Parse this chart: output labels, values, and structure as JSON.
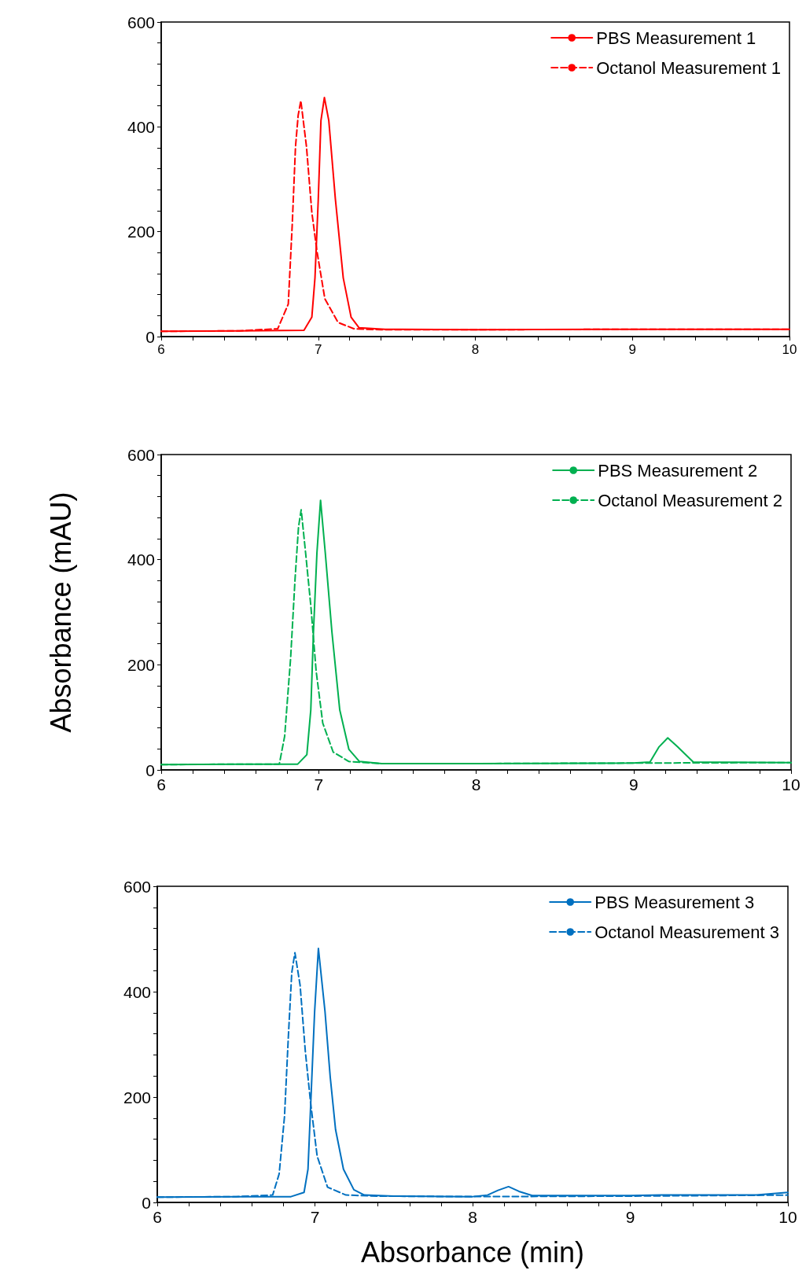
{
  "chart_data": [
    {
      "type": "line",
      "legend": "top right",
      "marker": "none",
      "grid": false,
      "xlim": [
        6,
        10
      ],
      "ylim": [
        0,
        600
      ],
      "xticks": [
        6,
        {
          "value": 6.2,
          "label": null
        },
        {
          "value": 6.4,
          "label": null
        },
        {
          "value": 6.6,
          "label": null
        },
        {
          "value": 6.8,
          "label": null
        },
        7,
        {
          "value": 7.2,
          "label": null
        },
        {
          "value": 7.4,
          "label": null
        },
        {
          "value": 7.6,
          "label": null
        },
        {
          "value": 7.8,
          "label": null
        },
        8,
        {
          "value": 8.2,
          "label": null
        },
        {
          "value": 8.4,
          "label": null
        },
        {
          "value": 8.6,
          "label": null
        },
        {
          "value": 8.8,
          "label": null
        },
        9,
        {
          "value": 9.2,
          "label": null
        },
        {
          "value": 9.4,
          "label": null
        },
        {
          "value": 9.6,
          "label": null
        },
        {
          "value": 9.8,
          "label": null
        },
        10
      ],
      "yticks": [
        0,
        {
          "value": 40,
          "label": null
        },
        {
          "value": 80,
          "label": null
        },
        {
          "value": 120,
          "label": null
        },
        {
          "value": 160,
          "label": null
        },
        200,
        {
          "value": 240,
          "label": null
        },
        {
          "value": 280,
          "label": null
        },
        {
          "value": 320,
          "label": null
        },
        {
          "value": 360,
          "label": null
        },
        400,
        {
          "value": 440,
          "label": null
        },
        {
          "value": 480,
          "label": null
        },
        {
          "value": 520,
          "label": null
        },
        {
          "value": 560,
          "label": null
        },
        600
      ],
      "series": [
        {
          "name": "PBS Measurement 1",
          "color": "#ff0000",
          "line_style": "solid",
          "x": [
            6,
            6.5,
            6.909,
            6.959,
            6.979,
            7.0,
            7.017,
            7.039,
            7.067,
            7.109,
            7.159,
            7.209,
            7.259,
            7.426,
            8,
            9,
            10
          ],
          "values": [
            10,
            11,
            12,
            37,
            112,
            262,
            412,
            456,
            412,
            262,
            112,
            37,
            17,
            14,
            13,
            14,
            14
          ]
        },
        {
          "name": "Octanol Measurement 1",
          "color": "#ff0000",
          "line_style": "dashed",
          "x": [
            6,
            6.5,
            6.742,
            6.809,
            6.834,
            6.855,
            6.872,
            6.889,
            6.925,
            6.959,
            6.992,
            7.042,
            7.126,
            7.226,
            7.4,
            8,
            9,
            10
          ],
          "values": [
            10,
            11,
            15,
            62,
            212,
            362,
            422,
            450,
            362,
            237,
            162,
            72,
            27,
            15,
            13,
            13,
            14,
            14
          ]
        }
      ]
    },
    {
      "type": "line",
      "legend": "top right",
      "marker": "none",
      "grid": false,
      "xlim": [
        6,
        10
      ],
      "ylim": [
        0,
        600
      ],
      "ylabel": "Absorbance (mAU)",
      "xticks": [
        6,
        {
          "value": 6.2,
          "label": null
        },
        {
          "value": 6.4,
          "label": null
        },
        {
          "value": 6.6,
          "label": null
        },
        {
          "value": 6.8,
          "label": null
        },
        7,
        {
          "value": 7.2,
          "label": null
        },
        {
          "value": 7.4,
          "label": null
        },
        {
          "value": 7.6,
          "label": null
        },
        {
          "value": 7.8,
          "label": null
        },
        8,
        {
          "value": 8.2,
          "label": null
        },
        {
          "value": 8.4,
          "label": null
        },
        {
          "value": 8.6,
          "label": null
        },
        {
          "value": 8.8,
          "label": null
        },
        9,
        {
          "value": 9.2,
          "label": null
        },
        {
          "value": 9.4,
          "label": null
        },
        {
          "value": 9.6,
          "label": null
        },
        {
          "value": 9.8,
          "label": null
        },
        10
      ],
      "yticks": [
        0,
        {
          "value": 40,
          "label": null
        },
        {
          "value": 80,
          "label": null
        },
        {
          "value": 120,
          "label": null
        },
        {
          "value": 160,
          "label": null
        },
        200,
        {
          "value": 240,
          "label": null
        },
        {
          "value": 280,
          "label": null
        },
        {
          "value": 320,
          "label": null
        },
        {
          "value": 360,
          "label": null
        },
        400,
        {
          "value": 440,
          "label": null
        },
        {
          "value": 480,
          "label": null
        },
        {
          "value": 520,
          "label": null
        },
        {
          "value": 560,
          "label": null
        },
        600
      ],
      "series": [
        {
          "name": "PBS Measurement 2",
          "color": "#00b050",
          "line_style": "solid",
          "x": [
            6,
            6.5,
            6.867,
            6.925,
            6.95,
            6.967,
            6.989,
            7.012,
            7.042,
            7.084,
            7.134,
            7.192,
            7.259,
            7.4,
            8,
            9,
            9.104,
            9.162,
            9.217,
            9.279,
            9.379,
            10
          ],
          "values": [
            10,
            11,
            11,
            29,
            114,
            263,
            413,
            513,
            413,
            263,
            114,
            39,
            16,
            12,
            12,
            13,
            15,
            44,
            61,
            44,
            15,
            14
          ]
        },
        {
          "name": "Octanol Measurement 2",
          "color": "#00b050",
          "line_style": "dashed",
          "x": [
            6,
            6.5,
            6.75,
            6.784,
            6.822,
            6.85,
            6.872,
            6.889,
            6.917,
            6.95,
            6.984,
            7.026,
            7.092,
            7.192,
            7.4,
            8,
            9,
            10
          ],
          "values": [
            10,
            11,
            11,
            64,
            213,
            363,
            462,
            495,
            413,
            313,
            188,
            89,
            34,
            16,
            12,
            12,
            13,
            14
          ]
        }
      ]
    },
    {
      "type": "line",
      "legend": "top right",
      "marker": "none",
      "grid": false,
      "xlim": [
        6,
        10
      ],
      "ylim": [
        0,
        600
      ],
      "xlabel": "Absorbance (min)",
      "xticks": [
        6,
        {
          "value": 6.2,
          "label": null
        },
        {
          "value": 6.4,
          "label": null
        },
        {
          "value": 6.6,
          "label": null
        },
        {
          "value": 6.8,
          "label": null
        },
        7,
        {
          "value": 7.2,
          "label": null
        },
        {
          "value": 7.4,
          "label": null
        },
        {
          "value": 7.6,
          "label": null
        },
        {
          "value": 7.8,
          "label": null
        },
        8,
        {
          "value": 8.2,
          "label": null
        },
        {
          "value": 8.4,
          "label": null
        },
        {
          "value": 8.6,
          "label": null
        },
        {
          "value": 8.8,
          "label": null
        },
        9,
        {
          "value": 9.2,
          "label": null
        },
        {
          "value": 9.4,
          "label": null
        },
        {
          "value": 9.6,
          "label": null
        },
        {
          "value": 9.8,
          "label": null
        },
        10
      ],
      "yticks": [
        0,
        {
          "value": 40,
          "label": null
        },
        {
          "value": 80,
          "label": null
        },
        {
          "value": 120,
          "label": null
        },
        {
          "value": 160,
          "label": null
        },
        200,
        {
          "value": 240,
          "label": null
        },
        {
          "value": 280,
          "label": null
        },
        {
          "value": 320,
          "label": null
        },
        {
          "value": 360,
          "label": null
        },
        400,
        {
          "value": 440,
          "label": null
        },
        {
          "value": 480,
          "label": null
        },
        {
          "value": 520,
          "label": null
        },
        {
          "value": 560,
          "label": null
        },
        600
      ],
      "series": [
        {
          "name": "PBS Measurement 3",
          "color": "#0070c0",
          "line_style": "solid",
          "x": [
            6,
            6.5,
            6.848,
            6.931,
            6.956,
            6.977,
            6.998,
            7.022,
            7.064,
            7.097,
            7.131,
            7.181,
            7.247,
            7.313,
            7.5,
            8,
            8.095,
            8.161,
            8.228,
            8.294,
            8.378,
            9,
            9.2,
            9.8,
            10
          ],
          "values": [
            10,
            11,
            11,
            19,
            63,
            213,
            362,
            482,
            362,
            238,
            138,
            63,
            24,
            14,
            12,
            11,
            14,
            23,
            30,
            21,
            13,
            13,
            14,
            14,
            19
          ]
        },
        {
          "name": "Octanol Measurement 3",
          "color": "#0070c0",
          "line_style": "dashed",
          "x": [
            6,
            6.5,
            6.732,
            6.773,
            6.807,
            6.831,
            6.853,
            6.873,
            6.906,
            6.939,
            6.973,
            7.014,
            7.08,
            7.197,
            7.4,
            8,
            9,
            10
          ],
          "values": [
            10,
            11,
            14,
            54,
            163,
            312,
            436,
            474,
            412,
            287,
            188,
            88,
            29,
            14,
            12,
            11,
            12,
            14
          ]
        }
      ]
    }
  ]
}
